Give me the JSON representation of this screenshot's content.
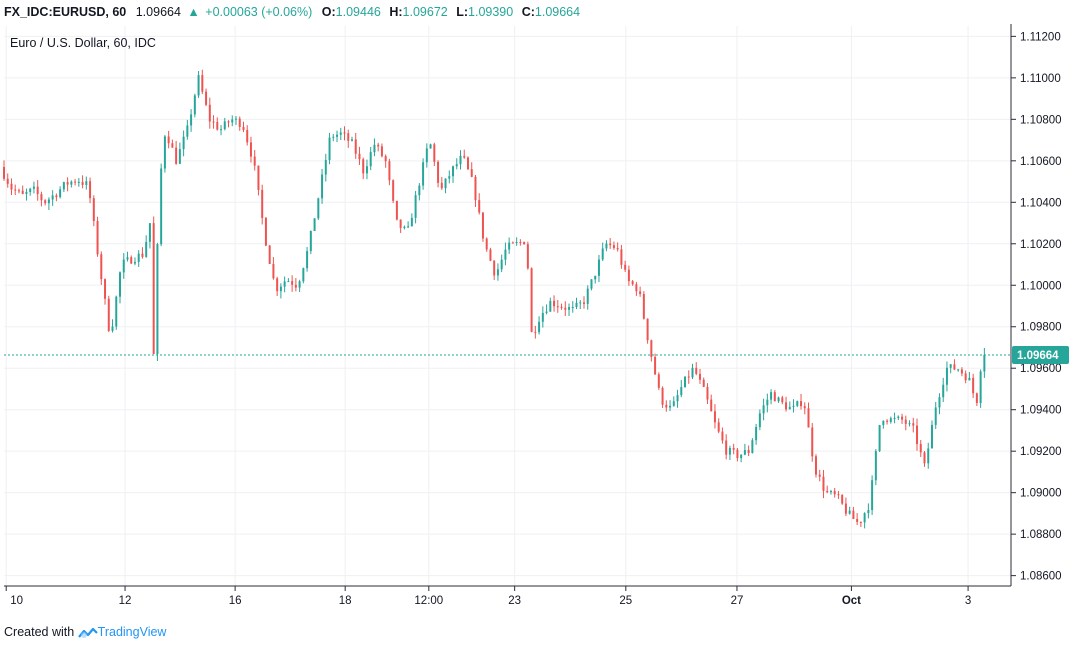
{
  "header": {
    "symbol": "FX_IDC:EURUSD, 60",
    "last": "1.09664",
    "change": "+0.00063 (+0.06%)",
    "o_label": "O:",
    "o": "1.09446",
    "h_label": "H:",
    "h": "1.09672",
    "l_label": "L:",
    "l": "1.09390",
    "c_label": "C:",
    "c": "1.09664"
  },
  "chart_title": "Euro / U.S. Dollar, 60, IDC",
  "footer": {
    "prefix": "Created with",
    "brand": "TradingView"
  },
  "colors": {
    "up": "#26a69a",
    "down": "#ef5350",
    "grid": "#eef0f3",
    "price_line": "#26a69a",
    "axis_text": "#131722"
  },
  "chart_data": {
    "type": "candlestick",
    "title": "Euro / U.S. Dollar, 60, IDC",
    "ylim": [
      1.0855,
      1.1125
    ],
    "y_ticks": [
      "1.11200",
      "1.11000",
      "1.10800",
      "1.10600",
      "1.10400",
      "1.10200",
      "1.10000",
      "1.09800",
      "1.09600",
      "1.09400",
      "1.09200",
      "1.09000",
      "1.08800",
      "1.08600"
    ],
    "x_ticks": [
      {
        "label": "10",
        "x": 0.2
      },
      {
        "label": "12",
        "x": 11
      },
      {
        "label": "16",
        "x": 21
      },
      {
        "label": "18",
        "x": 31
      },
      {
        "label": "12:00",
        "x": 38.6
      },
      {
        "label": "23",
        "x": 46.4
      },
      {
        "label": "25",
        "x": 56.5
      },
      {
        "label": "27",
        "x": 66.6
      },
      {
        "label": "Oct",
        "x": 77.0
      },
      {
        "label": "3",
        "x": 87.6
      }
    ],
    "x_range": [
      0,
      91.5
    ],
    "last_price": 1.09664,
    "last_price_label": "1.09664",
    "path": [
      [
        0,
        1.1057
      ],
      [
        1,
        1.1047
      ],
      [
        2,
        1.1043
      ],
      [
        3,
        1.1046
      ],
      [
        4,
        1.104
      ],
      [
        5,
        1.1044
      ],
      [
        6,
        1.1049
      ],
      [
        7,
        1.1051
      ],
      [
        8,
        1.1048
      ],
      [
        9,
        1.101
      ],
      [
        10,
        1.0975
      ],
      [
        11,
        1.101
      ],
      [
        12,
        1.1013
      ],
      [
        13,
        1.1015
      ],
      [
        13.6,
        1.103
      ],
      [
        14,
        1.0955
      ],
      [
        14.4,
        1.1045
      ],
      [
        15,
        1.1075
      ],
      [
        16,
        1.106
      ],
      [
        17,
        1.1075
      ],
      [
        18,
        1.11
      ],
      [
        19,
        1.108
      ],
      [
        20,
        1.1075
      ],
      [
        21,
        1.108
      ],
      [
        22,
        1.1078
      ],
      [
        23,
        1.106
      ],
      [
        24,
        1.1025
      ],
      [
        25,
        1.0998
      ],
      [
        26,
        1.1003
      ],
      [
        27,
        1.1
      ],
      [
        28,
        1.1018
      ],
      [
        29,
        1.1045
      ],
      [
        30,
        1.1072
      ],
      [
        31,
        1.1073
      ],
      [
        32,
        1.1068
      ],
      [
        33,
        1.1055
      ],
      [
        34,
        1.1068
      ],
      [
        35,
        1.106
      ],
      [
        36,
        1.103
      ],
      [
        37,
        1.1025
      ],
      [
        38,
        1.1048
      ],
      [
        39,
        1.107
      ],
      [
        40,
        1.1045
      ],
      [
        41,
        1.1055
      ],
      [
        42,
        1.1062
      ],
      [
        43,
        1.1048
      ],
      [
        44,
        1.102
      ],
      [
        45,
        1.1005
      ],
      [
        46,
        1.1018
      ],
      [
        47,
        1.102
      ],
      [
        47.8,
        1.1022
      ],
      [
        48.3,
        1.0975
      ],
      [
        49,
        1.0985
      ],
      [
        50,
        1.0992
      ],
      [
        51,
        1.099
      ],
      [
        52,
        1.0988
      ],
      [
        53,
        1.0992
      ],
      [
        54,
        1.1005
      ],
      [
        55,
        1.102
      ],
      [
        56,
        1.1018
      ],
      [
        57,
        1.1002
      ],
      [
        58,
        1.0998
      ],
      [
        59,
        1.097
      ],
      [
        60,
        1.0945
      ],
      [
        61,
        1.094
      ],
      [
        62,
        1.0952
      ],
      [
        63,
        1.096
      ],
      [
        64,
        1.0948
      ],
      [
        65,
        1.0932
      ],
      [
        66,
        1.092
      ],
      [
        67,
        1.0918
      ],
      [
        68,
        1.092
      ],
      [
        69,
        1.0938
      ],
      [
        70,
        1.0948
      ],
      [
        71,
        1.0943
      ],
      [
        72,
        1.094
      ],
      [
        73,
        1.0945
      ],
      [
        74,
        1.0912
      ],
      [
        75,
        1.09
      ],
      [
        76,
        1.0898
      ],
      [
        77,
        1.089
      ],
      [
        78,
        1.0885
      ],
      [
        79,
        1.0895
      ],
      [
        80,
        1.0937
      ],
      [
        81,
        1.0935
      ],
      [
        82,
        1.0935
      ],
      [
        83,
        1.093
      ],
      [
        84,
        1.0912
      ],
      [
        85,
        1.0942
      ],
      [
        86,
        1.096
      ],
      [
        87,
        1.096
      ],
      [
        88,
        1.0955
      ],
      [
        88.7,
        1.0943
      ],
      [
        89.2,
        1.0966
      ]
    ]
  }
}
